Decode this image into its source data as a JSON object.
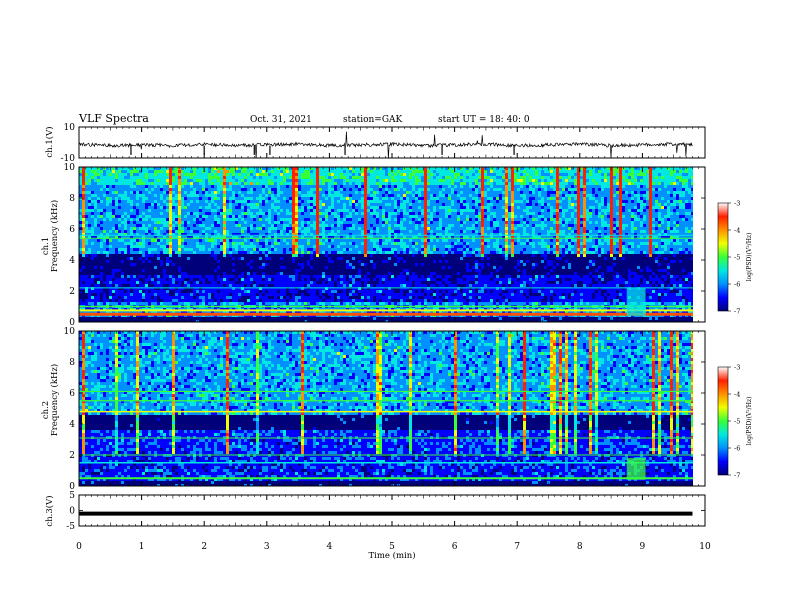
{
  "header": {
    "title": "VLF Spectra",
    "date": "Oct. 31, 2021",
    "station": "station=GAK",
    "start_ut": "start  UT =  18: 40: 0"
  },
  "colors": {
    "colormap": [
      "#00007a",
      "#0000ff",
      "#0090ff",
      "#00e8e0",
      "#38ff38",
      "#f0ff00",
      "#ff9000",
      "#ff2000",
      "#ffffff"
    ],
    "trace": "#000000",
    "background": "#ffffff"
  },
  "chart_data": [
    {
      "type": "line",
      "panel": "ch1-waveform",
      "ylabel": "ch.1(V)",
      "ylim": [
        -10,
        10
      ],
      "yticks": [
        "10",
        "-10"
      ],
      "xlim": [
        0,
        10
      ],
      "series": [
        {
          "x": [
            0,
            0.5,
            1,
            1.5,
            2,
            2.5,
            3,
            3.5,
            4,
            4.5,
            5,
            5.5,
            6,
            6.5,
            7,
            7.5,
            8,
            8.5,
            9,
            9.5,
            9.8
          ],
          "values": [
            -1,
            -2,
            -1.5,
            -2,
            -1,
            -2,
            -1.5,
            -1,
            -2,
            -1.5,
            -1,
            -2,
            -1.5,
            -1,
            -2,
            -1.5,
            -1,
            -2,
            -1.5,
            -1,
            -1.5
          ]
        }
      ]
    },
    {
      "type": "heatmap",
      "panel": "ch1-spectrogram",
      "ylabel": "ch.1\nFrequency (kHz)",
      "ylim": [
        0,
        10
      ],
      "yticks": [
        "0",
        "2",
        "4",
        "6",
        "8",
        "10"
      ],
      "xlim": [
        0,
        10
      ],
      "colorbar": {
        "title": "log(PSD)(V²/Hz)",
        "range": [
          -7,
          -3
        ],
        "ticks": [
          "-3",
          "-4",
          "-5",
          "-6",
          "-7"
        ]
      }
    },
    {
      "type": "heatmap",
      "panel": "ch2-spectrogram",
      "ylabel": "ch.2\nFrequency (kHz)",
      "ylim": [
        0,
        10
      ],
      "yticks": [
        "0",
        "2",
        "4",
        "6",
        "8",
        "10"
      ],
      "xlim": [
        0,
        10
      ],
      "colorbar": {
        "title": "log(PSD)(V²/Hz)",
        "range": [
          -7,
          -3
        ],
        "ticks": [
          "-3",
          "-4",
          "-5",
          "-6",
          "-7"
        ]
      }
    },
    {
      "type": "line",
      "panel": "ch3-waveform",
      "ylabel": "ch.3(V)",
      "ylim": [
        -5,
        5
      ],
      "yticks": [
        "5",
        "0",
        "-5"
      ],
      "xlim": [
        0,
        10
      ],
      "series": [
        {
          "x": [
            0,
            9.8
          ],
          "values": [
            -1,
            -1
          ]
        }
      ]
    }
  ],
  "xaxis": {
    "label": "Time  (min)",
    "ticks": [
      "0",
      "1",
      "2",
      "3",
      "4",
      "5",
      "6",
      "7",
      "8",
      "9",
      "10"
    ]
  }
}
